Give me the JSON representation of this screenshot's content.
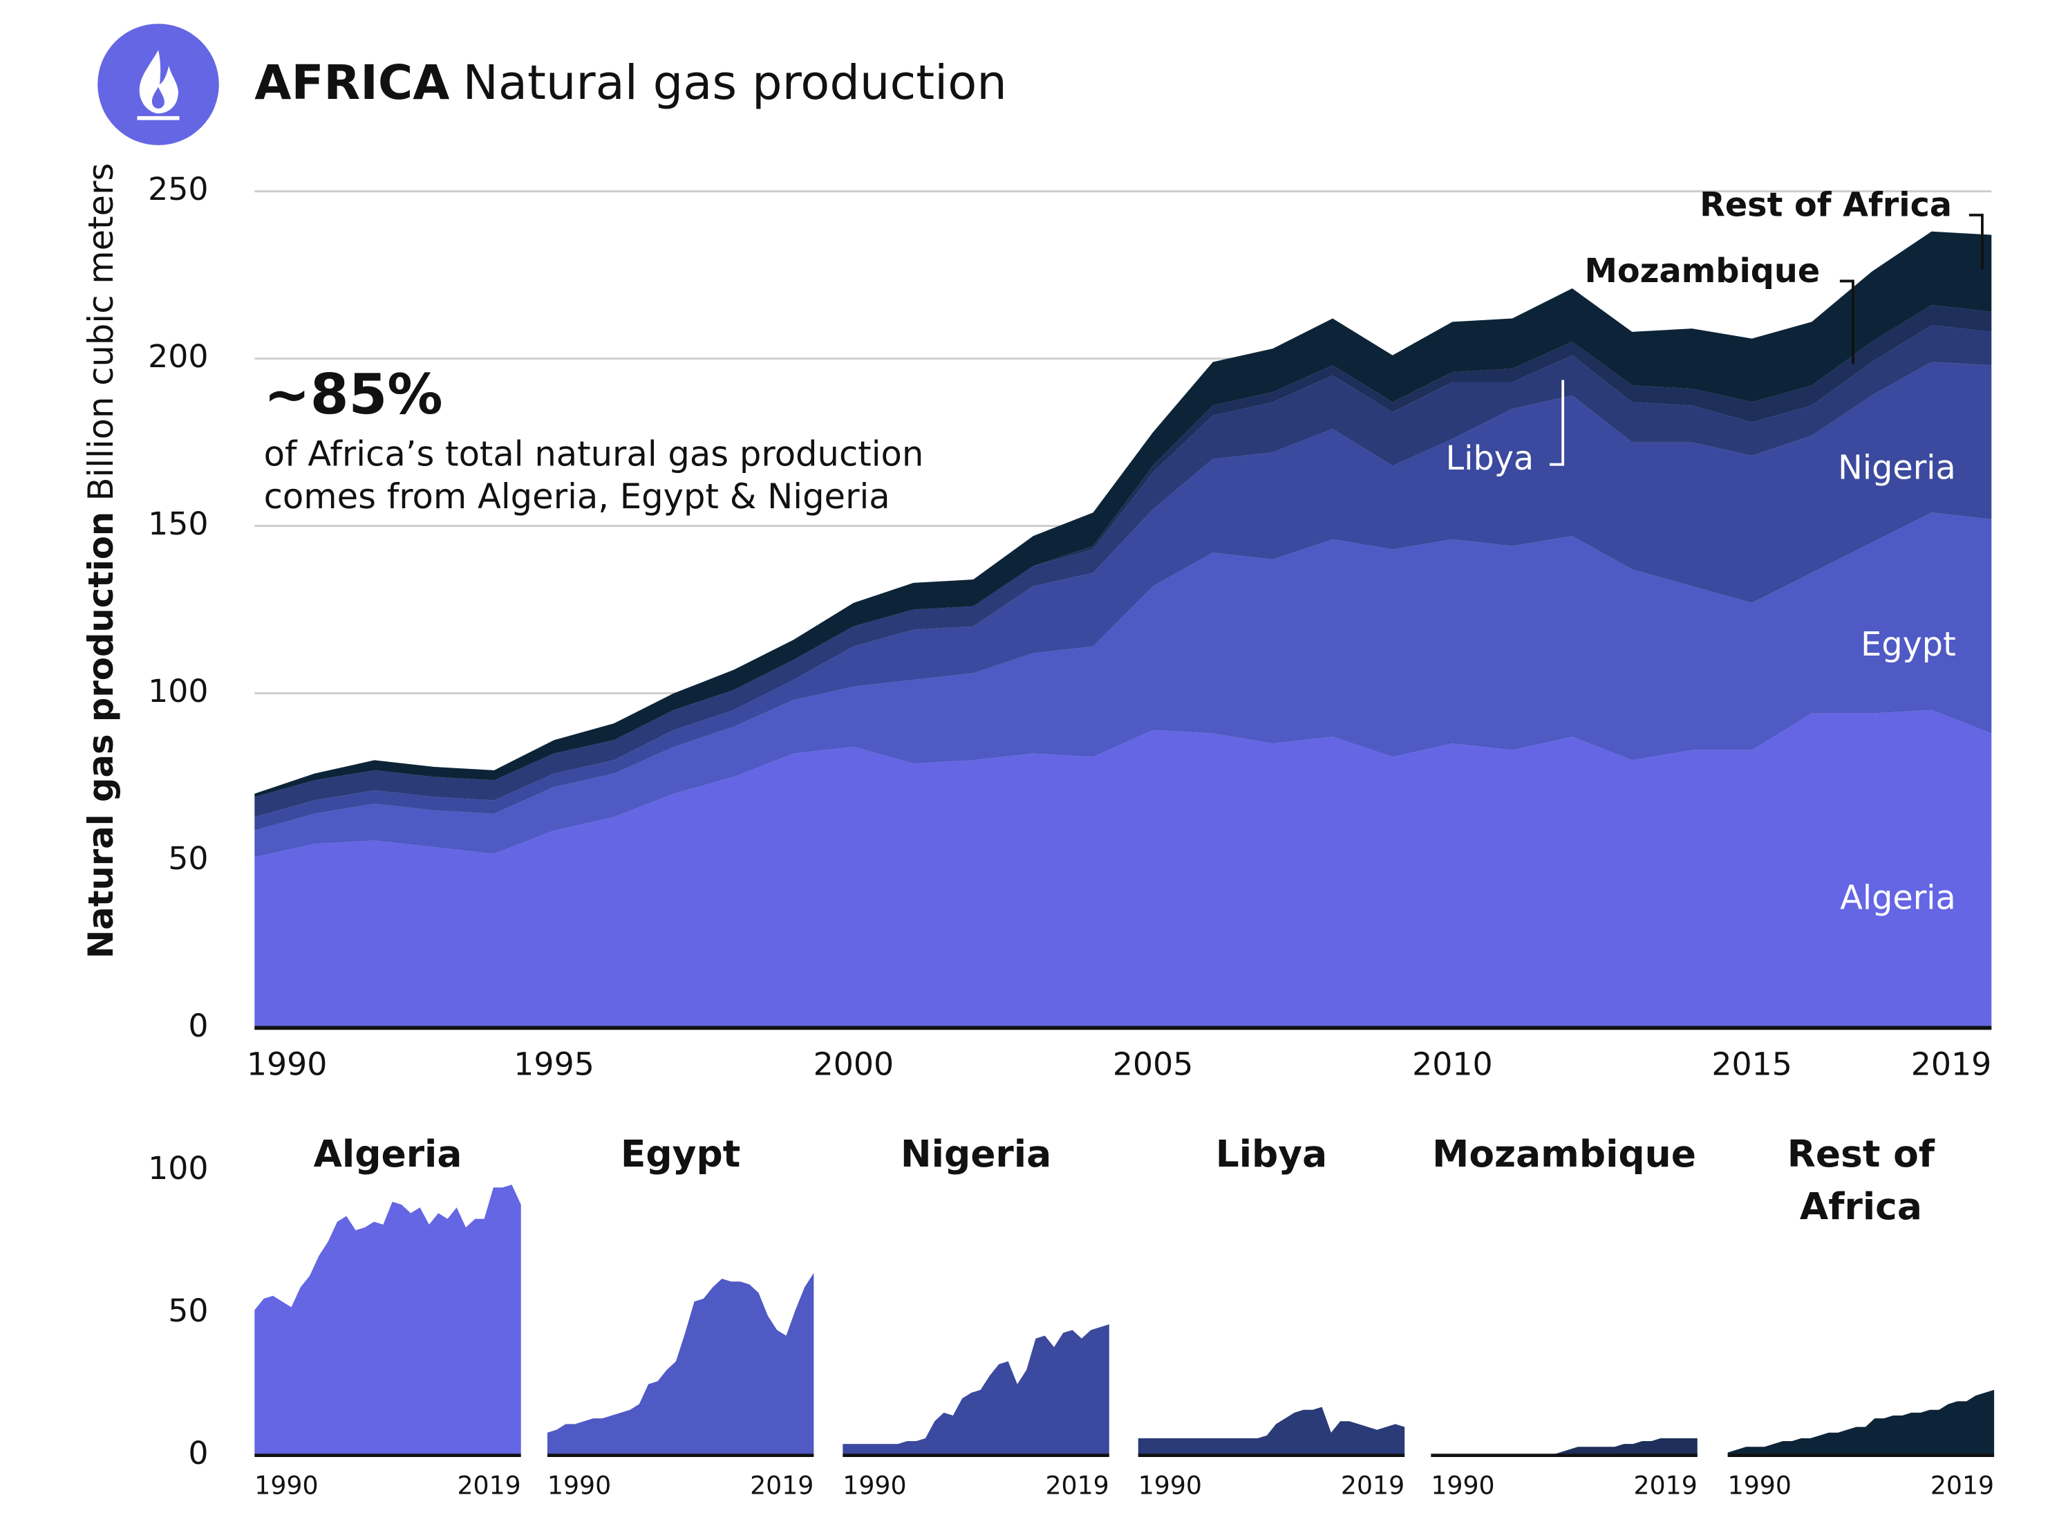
{
  "chart_data": {
    "type": "stacked_area",
    "title_bold": "AFRICA",
    "title": "Natural gas production",
    "y_label": "Natural gas production",
    "y_unit": "Billion cubic meters",
    "annotation_value": "~85%",
    "annotation_lines": [
      "of Africa’s total natural gas production",
      "comes from Algeria, Egypt & Nigeria"
    ],
    "x": [
      1990,
      1991,
      1992,
      1993,
      1994,
      1995,
      1996,
      1997,
      1998,
      1999,
      2000,
      2001,
      2002,
      2003,
      2004,
      2005,
      2006,
      2007,
      2008,
      2009,
      2010,
      2011,
      2012,
      2013,
      2014,
      2015,
      2016,
      2017,
      2018,
      2019
    ],
    "xlim": [
      1990,
      2019
    ],
    "xticks": [
      1990,
      1995,
      2000,
      2005,
      2010,
      2015,
      2019
    ],
    "ylim": [
      0,
      250
    ],
    "yticks": [
      0,
      50,
      100,
      150,
      200,
      250
    ],
    "grid": true,
    "small_ylim": [
      0,
      100
    ],
    "small_yticks": [
      0,
      50,
      100
    ],
    "series": [
      {
        "name": "Algeria",
        "color": "#6466e4",
        "values": [
          51,
          55,
          56,
          54,
          52,
          59,
          63,
          70,
          75,
          82,
          84,
          79,
          80,
          82,
          81,
          89,
          88,
          85,
          87,
          81,
          85,
          83,
          87,
          80,
          83,
          83,
          94,
          94,
          95,
          88
        ]
      },
      {
        "name": "Egypt",
        "color": "#4f5ac4",
        "values": [
          8,
          9,
          11,
          11,
          12,
          13,
          13,
          14,
          15,
          16,
          18,
          25,
          26,
          30,
          33,
          43,
          54,
          55,
          59,
          62,
          61,
          61,
          60,
          57,
          49,
          44,
          42,
          51,
          59,
          64
        ]
      },
      {
        "name": "Nigeria",
        "color": "#3b4a9e",
        "values": [
          4,
          4,
          4,
          4,
          4,
          4,
          4,
          5,
          5,
          6,
          12,
          15,
          14,
          20,
          22,
          23,
          28,
          32,
          33,
          25,
          30,
          41,
          42,
          38,
          43,
          44,
          41,
          44,
          45,
          46
        ]
      },
      {
        "name": "Libya",
        "color": "#2a3b78",
        "values": [
          6,
          6,
          6,
          6,
          6,
          6,
          6,
          6,
          6,
          6,
          6,
          6,
          6,
          6,
          7,
          11,
          13,
          15,
          16,
          16,
          17,
          8,
          12,
          12,
          11,
          10,
          9,
          10,
          11,
          10
        ]
      },
      {
        "name": "Mozambique",
        "color": "#1d2f5a",
        "values": [
          0,
          0,
          0,
          0,
          0,
          0,
          0,
          0,
          0,
          0,
          0,
          0,
          0,
          0,
          1,
          2,
          3,
          3,
          3,
          3,
          3,
          4,
          4,
          5,
          5,
          6,
          6,
          6,
          6,
          6
        ]
      },
      {
        "name": "Rest of Africa",
        "color": "#0d2438",
        "values": [
          1,
          2,
          3,
          3,
          3,
          4,
          5,
          5,
          6,
          6,
          7,
          8,
          8,
          9,
          10,
          10,
          13,
          13,
          14,
          14,
          15,
          15,
          16,
          16,
          18,
          19,
          19,
          21,
          22,
          23
        ]
      }
    ]
  }
}
